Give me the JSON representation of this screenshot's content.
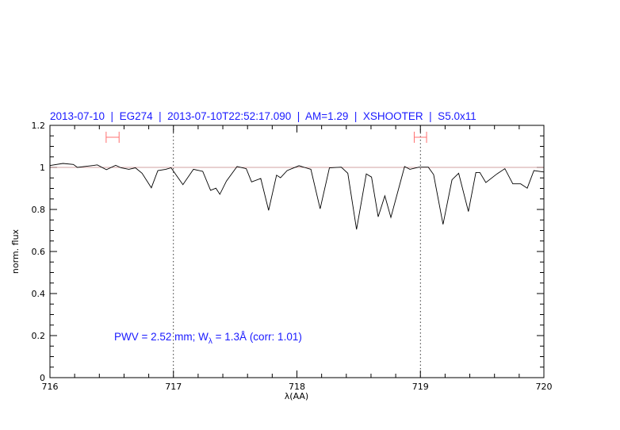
{
  "chart_data": {
    "type": "line",
    "title": "2013-07-10  |  EG274  |  2013-07-10T22:52:17.090  |  AM=1.29  |  XSHOOTER  |  S5.0x11",
    "xlabel": "λ(AA)",
    "ylabel": "norm. flux",
    "xlim": [
      716,
      720
    ],
    "ylim": [
      0,
      1.2
    ],
    "x_ticks": [
      "716",
      "717",
      "718",
      "719",
      "720"
    ],
    "y_ticks": [
      "0",
      "0.2",
      "0.4",
      "0.6",
      "0.8",
      "1",
      "1.2"
    ],
    "x_minor_step": 0.2,
    "y_minor_step": 0.05,
    "grid": false,
    "reference_line_y": 1.0,
    "vertical_dotted_lines_x": [
      717,
      719
    ],
    "intervals": [
      [
        716.455,
        716.56
      ],
      [
        718.95,
        719.05
      ]
    ],
    "annotation": {
      "prefix": "PWV = 2.52 mm; W",
      "sub": "λ",
      "suffix": " = 1.3Å (corr: 1.01)"
    },
    "colors": {
      "spectrum": "#000000",
      "reference": "#c08080",
      "interval": "#ff7070",
      "text": "#1a1aff"
    },
    "series": [
      {
        "x": [
          716.0,
          716.008,
          716.105,
          716.19,
          716.222,
          716.276,
          716.351,
          716.383,
          716.457,
          716.532,
          716.575,
          716.639,
          716.692,
          716.746,
          716.821,
          716.874,
          716.938,
          716.981,
          717.077,
          717.162,
          717.237,
          717.301,
          717.344,
          717.376,
          717.429,
          717.515,
          717.59,
          717.633,
          717.707,
          717.771,
          717.835,
          717.867,
          717.921,
          718.017,
          718.071,
          718.113,
          718.188,
          718.263,
          718.359,
          718.412,
          718.483,
          718.562,
          718.604,
          718.658,
          718.712,
          718.761,
          718.872,
          718.915,
          718.989,
          719.064,
          719.107,
          719.183,
          719.256,
          719.31,
          719.389,
          719.449,
          719.481,
          719.53,
          719.62,
          719.684,
          719.748,
          719.812,
          719.865,
          719.919,
          720.0
        ],
        "y": [
          1.008,
          1.01,
          1.019,
          1.014,
          1.0,
          1.004,
          1.009,
          1.012,
          0.989,
          1.01,
          0.998,
          0.991,
          0.998,
          0.972,
          0.903,
          0.985,
          0.991,
          0.998,
          0.918,
          0.991,
          0.981,
          0.891,
          0.901,
          0.872,
          0.935,
          1.004,
          0.994,
          0.931,
          0.947,
          0.796,
          0.963,
          0.951,
          0.985,
          1.008,
          0.998,
          0.991,
          0.803,
          0.998,
          1.001,
          0.972,
          0.705,
          0.969,
          0.954,
          0.765,
          0.865,
          0.762,
          1.004,
          0.991,
          1.001,
          1.001,
          0.966,
          0.729,
          0.941,
          0.972,
          0.79,
          0.976,
          0.976,
          0.928,
          0.969,
          0.994,
          0.922,
          0.922,
          0.901,
          0.985,
          0.978
        ]
      }
    ]
  }
}
